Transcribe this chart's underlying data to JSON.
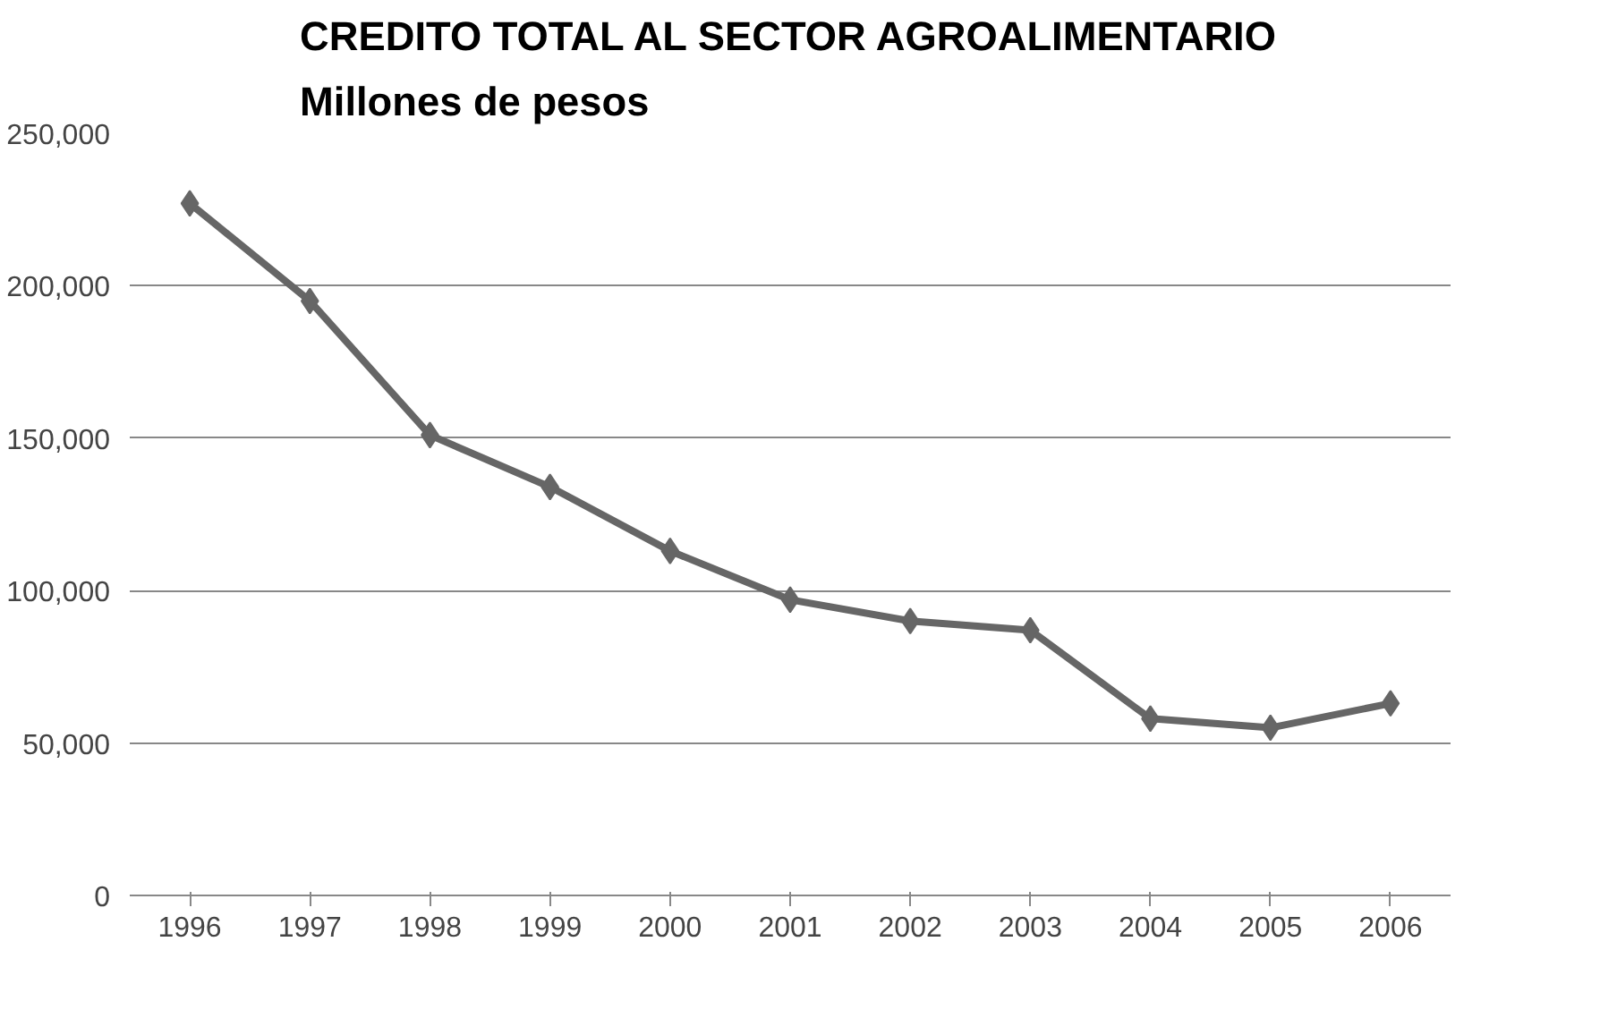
{
  "chart_data": {
    "type": "line",
    "title": "CREDITO TOTAL AL SECTOR AGROALIMENTARIO\nMillones de pesos",
    "categories": [
      "1996",
      "1997",
      "1998",
      "1999",
      "2000",
      "2001",
      "2002",
      "2003",
      "2004",
      "2005",
      "2006"
    ],
    "series": [
      {
        "color": "#666666",
        "values": [
          227000,
          195000,
          151000,
          134000,
          113000,
          97000,
          90000,
          87000,
          58000,
          55000,
          63000
        ]
      }
    ],
    "ylim": [
      0,
      250000
    ],
    "yticks": [
      {
        "value": 0,
        "label": "0"
      },
      {
        "value": 50000,
        "label": "50,000"
      },
      {
        "value": 100000,
        "label": "100,000"
      },
      {
        "value": 150000,
        "label": "150,000"
      },
      {
        "value": 200000,
        "label": "200,000"
      },
      {
        "value": 250000,
        "label": "250,000"
      }
    ],
    "grid": "y",
    "marker": "diamond",
    "line_style": "solid"
  }
}
